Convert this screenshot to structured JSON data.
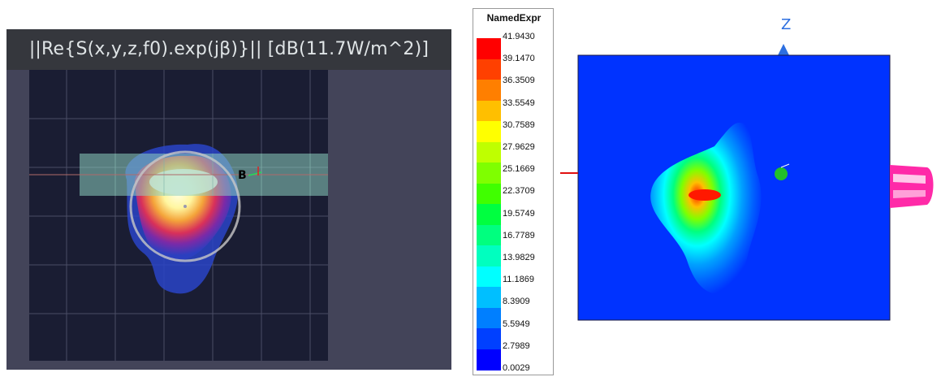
{
  "left_panel": {
    "title": "||Re{S(x,y,z,f0).exp(jβ)}|| [dB(11.7W/m^2)]",
    "marker_label": "B"
  },
  "color_scale": {
    "title": "NamedExpr",
    "levels": [
      "41.9430",
      "39.1470",
      "36.3509",
      "33.5549",
      "30.7589",
      "27.9629",
      "25.1669",
      "22.3709",
      "19.5749",
      "16.7789",
      "13.9829",
      "11.1869",
      "8.3909",
      "5.5949",
      "2.7989",
      "0.0029"
    ],
    "colors": [
      "#ff0000",
      "#ff4000",
      "#ff7f00",
      "#ffbf00",
      "#ffff00",
      "#bfff00",
      "#7fff00",
      "#40ff00",
      "#00ff40",
      "#00ff7f",
      "#00ffbf",
      "#00ffff",
      "#00bfff",
      "#007fff",
      "#0040ff",
      "#0000ff"
    ]
  },
  "right_panel": {
    "axis_label": "Z",
    "background_color": "#0033ff"
  }
}
